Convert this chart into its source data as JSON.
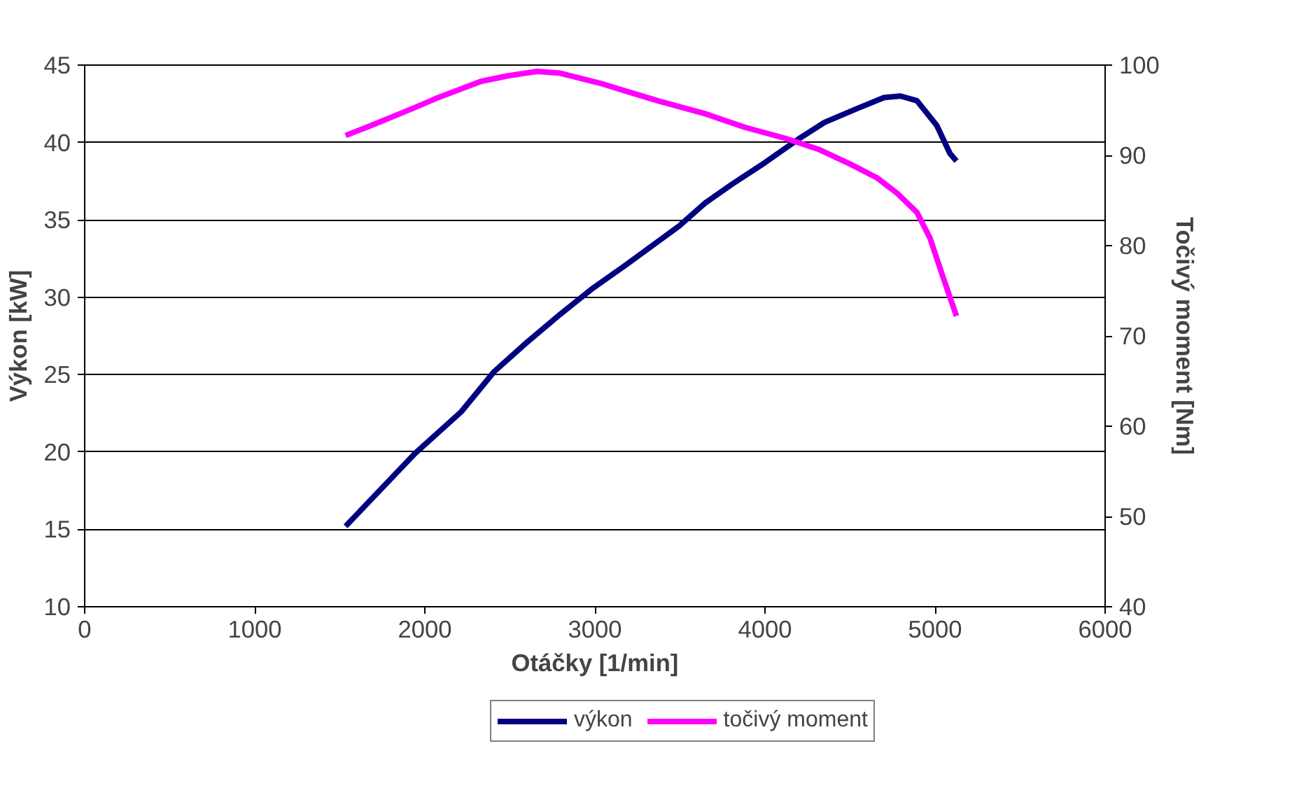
{
  "chart_data": {
    "type": "line",
    "xlabel": "Otáčky [1/min]",
    "ylabel": "Výkon [kW]",
    "y2label": "Točivý moment [Nm]",
    "xlim": [
      0,
      6000
    ],
    "xticks": [
      0,
      1000,
      2000,
      3000,
      4000,
      5000,
      6000
    ],
    "ylim": [
      10,
      45
    ],
    "yticks": [
      10,
      15,
      20,
      25,
      30,
      35,
      40,
      45
    ],
    "y2lim": [
      40,
      100
    ],
    "y2ticks": [
      40,
      50,
      60,
      70,
      80,
      90,
      100
    ],
    "grid": "y",
    "legend": "bottom",
    "marker": "none",
    "line_style": "solid",
    "series": [
      {
        "name": "výkon",
        "color": "#000080",
        "x": [
          1534,
          1942,
          2214,
          2408,
          2602,
          2796,
          2990,
          3184,
          3495,
          3650,
          3806,
          4000,
          4194,
          4350,
          4544,
          4699,
          4796,
          4893,
          5010,
          5087,
          5126
        ],
        "values": [
          15.2,
          19.9,
          22.6,
          25.2,
          27.1,
          28.9,
          30.6,
          32.1,
          34.6,
          36.1,
          37.3,
          38.7,
          40.2,
          41.3,
          42.2,
          42.9,
          43.0,
          42.7,
          41.1,
          39.3,
          38.8
        ]
      },
      {
        "name": "točivý moment",
        "color": "#ff00ff",
        "axis": "y2",
        "x": [
          1534,
          1670,
          1942,
          2078,
          2330,
          2485,
          2660,
          2796,
          3029,
          3184,
          3379,
          3650,
          3883,
          4117,
          4311,
          4505,
          4660,
          4777,
          4893,
          4971,
          5049,
          5126
        ],
        "values": [
          92.2,
          93.2,
          95.3,
          96.4,
          98.2,
          98.8,
          99.3,
          99.1,
          98.0,
          97.1,
          96.0,
          94.6,
          93.1,
          91.9,
          90.7,
          89.0,
          87.5,
          85.8,
          83.7,
          80.8,
          76.4,
          72.2
        ]
      }
    ]
  }
}
